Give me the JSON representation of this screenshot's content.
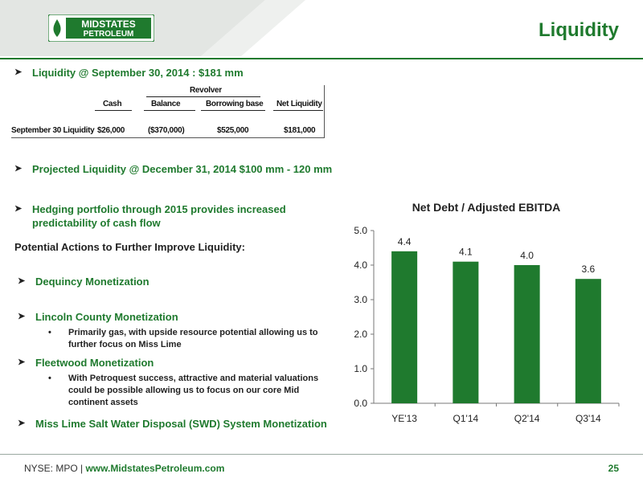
{
  "header": {
    "logo_text_top": "MIDSTATES",
    "logo_text_bottom": "PETROLEUM",
    "title": "Liquidity"
  },
  "bullets": {
    "b1": "Liquidity @ September 30, 2014 :  $181 mm",
    "b2": "Projected Liquidity @ December 31, 2014 $100 mm - 120 mm",
    "b3_line1": "Hedging portfolio through 2015 provides increased",
    "b3_line2": "predictability of cash flow"
  },
  "table": {
    "group_header": "Revolver",
    "columns": [
      "Cash",
      "Balance",
      "Borrowing base",
      "Net Liquidity"
    ],
    "row_label": "September 30 Liquidity",
    "row_values": [
      "$26,000",
      "($370,000)",
      "$525,000",
      "$181,000"
    ]
  },
  "actions": {
    "heading": "Potential Actions to Further Improve Liquidity:",
    "a1": "Dequincy Monetization",
    "a2": "Lincoln County Monetization",
    "a2_sub_line1": "Primarily gas, with upside resource potential allowing us to",
    "a2_sub_line2": "further focus on Miss Lime",
    "a3": "Fleetwood Monetization",
    "a3_sub_line1": "With Petroquest success, attractive and material valuations",
    "a3_sub_line2": "could be possible allowing us to focus on our core Mid",
    "a3_sub_line3": "continent assets",
    "a4": "Miss Lime Salt Water Disposal (SWD) System Monetization"
  },
  "chart_data": {
    "type": "bar",
    "title": "Net Debt / Adjusted EBITDA",
    "categories": [
      "YE'13",
      "Q1'14",
      "Q2'14",
      "Q3'14"
    ],
    "values": [
      4.4,
      4.1,
      4.0,
      3.6
    ],
    "value_labels": [
      "4.4",
      "4.1",
      "4.0",
      "3.6"
    ],
    "y_ticks": [
      "0.0",
      "1.0",
      "2.0",
      "3.0",
      "4.0",
      "5.0"
    ],
    "ylim": [
      0,
      5
    ],
    "bar_color": "#1f7a2e",
    "grid": false,
    "legend": "none"
  },
  "footer": {
    "prefix": "NYSE: MPO | ",
    "url": "www.MidstatesPetroleum.com",
    "page_number": "25"
  },
  "colors": {
    "brand_green": "#1f7a2e",
    "header_gray": "#d9ddd9"
  }
}
